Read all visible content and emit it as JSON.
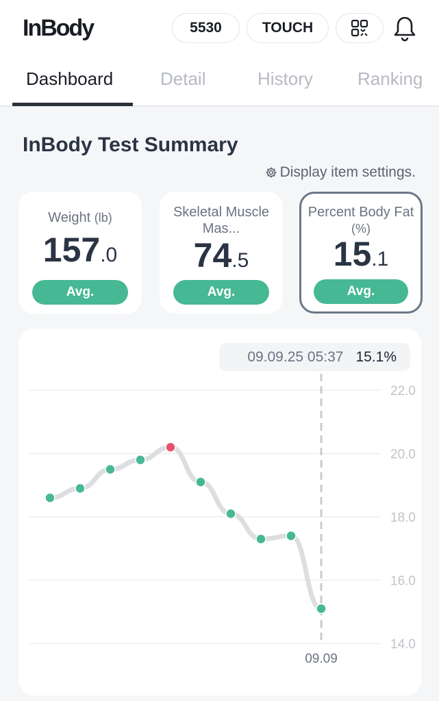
{
  "header": {
    "logo": "InBody",
    "id_badge": "5530",
    "touch_label": "TOUCH",
    "qr_icon": "qr-code-icon",
    "bell_icon": "bell-icon"
  },
  "tabs": [
    {
      "label": "Dashboard",
      "active": true
    },
    {
      "label": "Detail"
    },
    {
      "label": "History"
    },
    {
      "label": "Ranking"
    }
  ],
  "summary": {
    "title": "InBody Test Summary",
    "settings_label": "Display item settings."
  },
  "cards": [
    {
      "label": "Weight",
      "unit": "(lb)",
      "int": "157",
      "dec": ".0",
      "badge": "Avg."
    },
    {
      "label": "Skeletal Muscle Mas...",
      "int": "74",
      "dec": ".5",
      "badge": "Avg."
    },
    {
      "label": "Percent Body Fat",
      "unit": "(%)",
      "int": "15",
      "dec": ".1",
      "badge": "Avg.",
      "selected": true
    }
  ],
  "colors": {
    "normal": "#46b894",
    "high": "#e8546e",
    "line": "#dcdee2"
  },
  "chart_data": {
    "type": "line",
    "title": "Percent Body Fat",
    "ylim": [
      14,
      22
    ],
    "yticks": [
      "22.0",
      "20.0",
      "18.0",
      "16.0",
      "14.0"
    ],
    "ytick_values": [
      22,
      20,
      18,
      16,
      14
    ],
    "values": [
      18.6,
      18.9,
      19.5,
      19.8,
      20.2,
      19.1,
      18.1,
      17.3,
      17.4,
      15.1
    ],
    "highlight_index": 4,
    "selected_index": 9,
    "x_label_selected": "09.09",
    "tooltip": {
      "date": "09.09.25 05:37",
      "value": "15.1%"
    }
  }
}
